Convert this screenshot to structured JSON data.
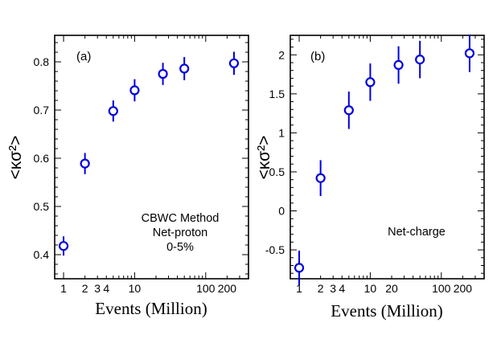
{
  "chart_data": [
    {
      "type": "scatter",
      "panel_label": "(a)",
      "xlabel": "Events (Million)",
      "ylabel": "<κσ²>",
      "x_scale": "log",
      "xlim": [
        0.75,
        400
      ],
      "ylim": [
        0.35,
        0.855
      ],
      "x_ticks": [
        1,
        2,
        3,
        4,
        10,
        100,
        200
      ],
      "x_tick_labels": [
        "1",
        "2",
        "3",
        "4",
        "10",
        "100",
        "200"
      ],
      "y_ticks": [
        0.4,
        0.5,
        0.6,
        0.7,
        0.8
      ],
      "y_tick_labels": [
        "0.4",
        "0.5",
        "0.6",
        "0.7",
        "0.8"
      ],
      "annotation": [
        "CBWC Method",
        "Net-proton",
        "0-5%"
      ],
      "points": [
        {
          "x": 1,
          "y": 0.418,
          "err": 0.02
        },
        {
          "x": 2,
          "y": 0.589,
          "err": 0.022
        },
        {
          "x": 5,
          "y": 0.698,
          "err": 0.022
        },
        {
          "x": 10,
          "y": 0.741,
          "err": 0.023
        },
        {
          "x": 25,
          "y": 0.775,
          "err": 0.023
        },
        {
          "x": 50,
          "y": 0.786,
          "err": 0.024
        },
        {
          "x": 250,
          "y": 0.797,
          "err": 0.024
        }
      ]
    },
    {
      "type": "scatter",
      "panel_label": "(b)",
      "xlabel": "Events (Million)",
      "ylabel": "<κσ²>",
      "x_scale": "log",
      "xlim": [
        0.75,
        400
      ],
      "ylim": [
        -0.87,
        2.25
      ],
      "x_ticks": [
        1,
        2,
        3,
        4,
        10,
        20,
        100,
        200
      ],
      "x_tick_labels": [
        "1",
        "2",
        "3",
        "4",
        "10",
        "20",
        "100",
        "200"
      ],
      "y_ticks": [
        -0.5,
        0,
        0.5,
        1,
        1.5,
        2
      ],
      "y_tick_labels": [
        "-0.5",
        "0",
        "0.5",
        "1",
        "1.5",
        "2"
      ],
      "annotation": [
        "Net-charge"
      ],
      "points": [
        {
          "x": 1,
          "y": -0.73,
          "err": 0.22
        },
        {
          "x": 2,
          "y": 0.42,
          "err": 0.23
        },
        {
          "x": 5,
          "y": 1.29,
          "err": 0.24
        },
        {
          "x": 10,
          "y": 1.65,
          "err": 0.24
        },
        {
          "x": 25,
          "y": 1.87,
          "err": 0.24
        },
        {
          "x": 50,
          "y": 1.94,
          "err": 0.24
        },
        {
          "x": 250,
          "y": 2.02,
          "err": 0.24
        }
      ]
    }
  ]
}
